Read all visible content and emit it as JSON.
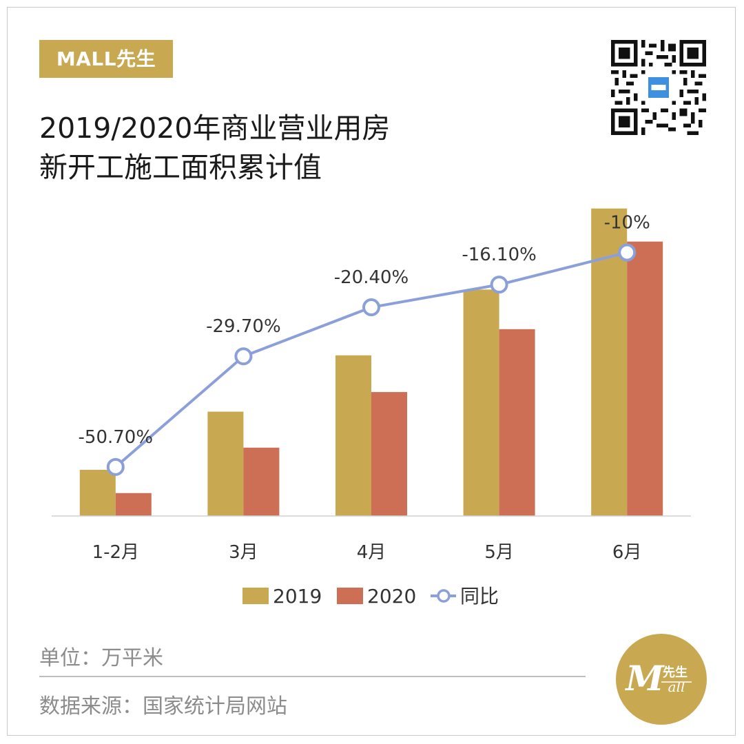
{
  "brand": {
    "tag_label": "MALL先生",
    "logo_text": "M",
    "logo_cn": "先生",
    "logo_sub": "all"
  },
  "title": {
    "line1": "2019/2020年商业营业用房",
    "line2": "新开工施工面积累计值"
  },
  "footer": {
    "unit": "单位：万平米",
    "source": "数据来源：国家统计局网站"
  },
  "colors": {
    "s2019": "#c8a951",
    "s2020": "#cd6f55",
    "yoy": "#8b9fd9",
    "brand": "#c8a951"
  },
  "chart_data": {
    "type": "bar",
    "title": "2019/2020年商业营业用房新开工施工面积累计值",
    "categories": [
      "1-2月",
      "3月",
      "4月",
      "5月",
      "6月"
    ],
    "series": [
      {
        "name": "2019",
        "type": "bar",
        "values": [
          127,
          287,
          442,
          623,
          846
        ]
      },
      {
        "name": "2020",
        "type": "bar",
        "values": [
          63,
          188,
          341,
          514,
          755
        ]
      },
      {
        "name": "同比",
        "type": "line",
        "values": [
          -50.7,
          -29.7,
          -20.4,
          -16.1,
          -10.0
        ],
        "labels": [
          "-50.70%",
          "-29.70%",
          "-20.40%",
          "-16.10%",
          "-10%"
        ]
      }
    ],
    "ylim_bar": [
      0,
      870
    ],
    "ylim_line": [
      -60,
      0
    ],
    "ylabel": "万平米",
    "legend_position": "bottom",
    "grid": false
  }
}
